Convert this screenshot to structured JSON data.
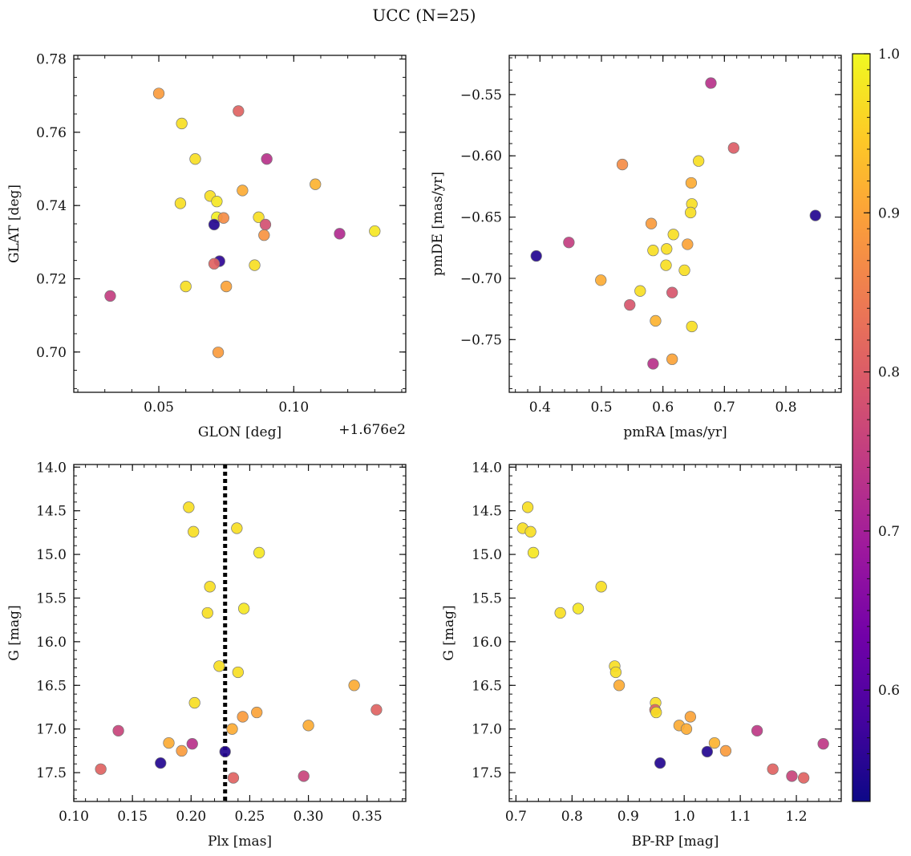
{
  "figure": {
    "title": "UCC (N=25)"
  },
  "colorbar": {
    "range": [
      0.53,
      1.0
    ],
    "ticks": [
      0.6,
      0.7,
      0.8,
      0.9,
      1.0
    ],
    "tick_labels": [
      "0.6",
      "0.7",
      "0.8",
      "0.9",
      "1.0"
    ],
    "colormap": "plasma"
  },
  "colors": {
    "plasma_stops": [
      "#0d0887",
      "#46039f",
      "#7201a8",
      "#9c179e",
      "#bd3786",
      "#d8576b",
      "#ed7953",
      "#fb9f3a",
      "#fdca26",
      "#f0f921"
    ],
    "marker_edge": "#777777",
    "frame": "#111111",
    "reference_line": "#000000"
  },
  "chart_data": [
    {
      "type": "scatter",
      "name": "glon-glat",
      "xlabel": "GLON [deg]",
      "ylabel": "GLAT [deg]",
      "x_offset_label": "+1.676e2",
      "xlim": [
        0.0185,
        0.1415
      ],
      "ylim": [
        0.689,
        0.781
      ],
      "xticks": [
        0.05,
        0.1
      ],
      "xtick_labels": [
        "0.05",
        "0.10"
      ],
      "yticks": [
        0.7,
        0.72,
        0.74,
        0.76,
        0.78
      ],
      "ytick_labels": [
        "0.70",
        "0.72",
        "0.74",
        "0.76",
        "0.78"
      ],
      "x_minor_step": 0.01,
      "y_minor_step": 0.005,
      "points": [
        {
          "x": 0.05,
          "y": 0.7706,
          "c": 0.89
        },
        {
          "x": 0.0795,
          "y": 0.7658,
          "c": 0.81
        },
        {
          "x": 0.0585,
          "y": 0.7624,
          "c": 0.97
        },
        {
          "x": 0.0635,
          "y": 0.7527,
          "c": 0.97
        },
        {
          "x": 0.09,
          "y": 0.7527,
          "c": 0.73
        },
        {
          "x": 0.108,
          "y": 0.7458,
          "c": 0.92
        },
        {
          "x": 0.081,
          "y": 0.7441,
          "c": 0.91
        },
        {
          "x": 0.069,
          "y": 0.7426,
          "c": 0.97
        },
        {
          "x": 0.058,
          "y": 0.7406,
          "c": 0.97
        },
        {
          "x": 0.0715,
          "y": 0.7411,
          "c": 0.98
        },
        {
          "x": 0.0715,
          "y": 0.7368,
          "c": 0.99
        },
        {
          "x": 0.074,
          "y": 0.7366,
          "c": 0.87
        },
        {
          "x": 0.087,
          "y": 0.7368,
          "c": 0.97
        },
        {
          "x": 0.0895,
          "y": 0.7348,
          "c": 0.78
        },
        {
          "x": 0.0705,
          "y": 0.7348,
          "c": 0.55
        },
        {
          "x": 0.089,
          "y": 0.7319,
          "c": 0.88
        },
        {
          "x": 0.117,
          "y": 0.7323,
          "c": 0.72
        },
        {
          "x": 0.13,
          "y": 0.733,
          "c": 0.98
        },
        {
          "x": 0.0725,
          "y": 0.7248,
          "c": 0.56
        },
        {
          "x": 0.0705,
          "y": 0.7241,
          "c": 0.81
        },
        {
          "x": 0.0855,
          "y": 0.7237,
          "c": 0.97
        },
        {
          "x": 0.06,
          "y": 0.7179,
          "c": 0.97
        },
        {
          "x": 0.075,
          "y": 0.7179,
          "c": 0.9
        },
        {
          "x": 0.032,
          "y": 0.7153,
          "c": 0.75
        },
        {
          "x": 0.072,
          "y": 0.6999,
          "c": 0.89
        }
      ]
    },
    {
      "type": "scatter",
      "name": "pmra-pmde",
      "xlabel": "pmRA [mas/yr]",
      "ylabel": "pmDE [mas/yr]",
      "xlim": [
        0.35,
        0.89
      ],
      "ylim": [
        -0.793,
        -0.518
      ],
      "xticks": [
        0.4,
        0.5,
        0.6,
        0.7,
        0.8
      ],
      "xtick_labels": [
        "0.4",
        "0.5",
        "0.6",
        "0.7",
        "0.8"
      ],
      "yticks": [
        -0.55,
        -0.6,
        -0.65,
        -0.7,
        -0.75
      ],
      "ytick_labels": [
        "−0.55",
        "−0.60",
        "−0.65",
        "−0.70",
        "−0.75"
      ],
      "x_minor_step": 0.02,
      "y_minor_step": 0.01,
      "points": [
        {
          "x": 0.678,
          "y": -0.5406,
          "c": 0.73
        },
        {
          "x": 0.715,
          "y": -0.5936,
          "c": 0.8
        },
        {
          "x": 0.534,
          "y": -0.6071,
          "c": 0.87
        },
        {
          "x": 0.658,
          "y": -0.6042,
          "c": 0.97
        },
        {
          "x": 0.646,
          "y": -0.6221,
          "c": 0.91
        },
        {
          "x": 0.647,
          "y": -0.6393,
          "c": 0.97
        },
        {
          "x": 0.645,
          "y": -0.6463,
          "c": 0.97
        },
        {
          "x": 0.848,
          "y": -0.6487,
          "c": 0.55
        },
        {
          "x": 0.581,
          "y": -0.6553,
          "c": 0.89
        },
        {
          "x": 0.617,
          "y": -0.6642,
          "c": 0.97
        },
        {
          "x": 0.447,
          "y": -0.6707,
          "c": 0.75
        },
        {
          "x": 0.64,
          "y": -0.6722,
          "c": 0.9
        },
        {
          "x": 0.606,
          "y": -0.676,
          "c": 0.97
        },
        {
          "x": 0.584,
          "y": -0.6772,
          "c": 0.97
        },
        {
          "x": 0.394,
          "y": -0.6817,
          "c": 0.55
        },
        {
          "x": 0.605,
          "y": -0.6893,
          "c": 0.97
        },
        {
          "x": 0.635,
          "y": -0.6934,
          "c": 0.97
        },
        {
          "x": 0.499,
          "y": -0.7015,
          "c": 0.91
        },
        {
          "x": 0.563,
          "y": -0.7103,
          "c": 0.97
        },
        {
          "x": 0.615,
          "y": -0.7116,
          "c": 0.79
        },
        {
          "x": 0.546,
          "y": -0.7217,
          "c": 0.79
        },
        {
          "x": 0.588,
          "y": -0.7347,
          "c": 0.92
        },
        {
          "x": 0.647,
          "y": -0.7393,
          "c": 0.97
        },
        {
          "x": 0.615,
          "y": -0.766,
          "c": 0.9
        },
        {
          "x": 0.584,
          "y": -0.7697,
          "c": 0.73
        }
      ]
    },
    {
      "type": "scatter",
      "name": "plx-g",
      "xlabel": "Plx [mas]",
      "ylabel": "G [mag]",
      "xlim": [
        0.1,
        0.383
      ],
      "ylim": [
        17.83,
        13.97
      ],
      "xticks": [
        0.1,
        0.15,
        0.2,
        0.25,
        0.3,
        0.35
      ],
      "xtick_labels": [
        "0.10",
        "0.15",
        "0.20",
        "0.25",
        "0.30",
        "0.35"
      ],
      "yticks": [
        14.0,
        14.5,
        15.0,
        15.5,
        16.0,
        16.5,
        17.0,
        17.5
      ],
      "ytick_labels": [
        "14.0",
        "14.5",
        "15.0",
        "15.5",
        "16.0",
        "16.5",
        "17.0",
        "17.5"
      ],
      "x_minor_step": 0.01,
      "y_minor_step": 0.1,
      "vline": 0.229,
      "points": [
        {
          "x": 0.198,
          "y": 14.46,
          "c": 0.97
        },
        {
          "x": 0.202,
          "y": 14.74,
          "c": 0.97
        },
        {
          "x": 0.239,
          "y": 14.7,
          "c": 0.97
        },
        {
          "x": 0.258,
          "y": 14.98,
          "c": 0.98
        },
        {
          "x": 0.216,
          "y": 15.37,
          "c": 0.97
        },
        {
          "x": 0.245,
          "y": 15.62,
          "c": 0.98
        },
        {
          "x": 0.214,
          "y": 15.67,
          "c": 0.97
        },
        {
          "x": 0.224,
          "y": 16.28,
          "c": 0.97
        },
        {
          "x": 0.24,
          "y": 16.35,
          "c": 0.97
        },
        {
          "x": 0.339,
          "y": 16.5,
          "c": 0.91
        },
        {
          "x": 0.203,
          "y": 16.7,
          "c": 0.97
        },
        {
          "x": 0.358,
          "y": 16.78,
          "c": 0.81
        },
        {
          "x": 0.256,
          "y": 16.81,
          "c": 0.9
        },
        {
          "x": 0.244,
          "y": 16.86,
          "c": 0.89
        },
        {
          "x": 0.3,
          "y": 16.96,
          "c": 0.91
        },
        {
          "x": 0.235,
          "y": 17.0,
          "c": 0.91
        },
        {
          "x": 0.138,
          "y": 17.02,
          "c": 0.76
        },
        {
          "x": 0.181,
          "y": 17.16,
          "c": 0.91
        },
        {
          "x": 0.201,
          "y": 17.17,
          "c": 0.73
        },
        {
          "x": 0.192,
          "y": 17.25,
          "c": 0.89
        },
        {
          "x": 0.229,
          "y": 17.26,
          "c": 0.55
        },
        {
          "x": 0.174,
          "y": 17.39,
          "c": 0.55
        },
        {
          "x": 0.123,
          "y": 17.46,
          "c": 0.81
        },
        {
          "x": 0.296,
          "y": 17.54,
          "c": 0.76
        },
        {
          "x": 0.236,
          "y": 17.56,
          "c": 0.81
        }
      ]
    },
    {
      "type": "scatter",
      "name": "bprp-g",
      "xlabel": "BP-RP [mag]",
      "ylabel": "G [mag]",
      "xlim": [
        0.688,
        1.28
      ],
      "ylim": [
        17.83,
        13.97
      ],
      "xticks": [
        0.7,
        0.8,
        0.9,
        1.0,
        1.1,
        1.2
      ],
      "xtick_labels": [
        "0.7",
        "0.8",
        "0.9",
        "1.0",
        "1.1",
        "1.2"
      ],
      "yticks": [
        14.0,
        14.5,
        15.0,
        15.5,
        16.0,
        16.5,
        17.0,
        17.5
      ],
      "ytick_labels": [
        "14.0",
        "14.5",
        "15.0",
        "15.5",
        "16.0",
        "16.5",
        "17.0",
        "17.5"
      ],
      "x_minor_step": 0.02,
      "y_minor_step": 0.1,
      "points": [
        {
          "x": 0.721,
          "y": 14.46,
          "c": 0.97
        },
        {
          "x": 0.712,
          "y": 14.7,
          "c": 0.97
        },
        {
          "x": 0.726,
          "y": 14.74,
          "c": 0.97
        },
        {
          "x": 0.731,
          "y": 14.98,
          "c": 0.98
        },
        {
          "x": 0.852,
          "y": 15.37,
          "c": 0.97
        },
        {
          "x": 0.811,
          "y": 15.62,
          "c": 0.98
        },
        {
          "x": 0.779,
          "y": 15.67,
          "c": 0.97
        },
        {
          "x": 0.876,
          "y": 16.28,
          "c": 0.97
        },
        {
          "x": 0.878,
          "y": 16.35,
          "c": 0.97
        },
        {
          "x": 0.884,
          "y": 16.5,
          "c": 0.91
        },
        {
          "x": 0.949,
          "y": 16.7,
          "c": 0.97
        },
        {
          "x": 0.948,
          "y": 16.78,
          "c": 0.81
        },
        {
          "x": 0.95,
          "y": 16.81,
          "c": 0.97
        },
        {
          "x": 1.011,
          "y": 16.86,
          "c": 0.9
        },
        {
          "x": 0.991,
          "y": 16.96,
          "c": 0.91
        },
        {
          "x": 1.004,
          "y": 17.0,
          "c": 0.91
        },
        {
          "x": 1.13,
          "y": 17.02,
          "c": 0.74
        },
        {
          "x": 1.054,
          "y": 17.16,
          "c": 0.92
        },
        {
          "x": 1.248,
          "y": 17.17,
          "c": 0.74
        },
        {
          "x": 1.074,
          "y": 17.25,
          "c": 0.89
        },
        {
          "x": 1.041,
          "y": 17.26,
          "c": 0.55
        },
        {
          "x": 0.957,
          "y": 17.39,
          "c": 0.55
        },
        {
          "x": 1.158,
          "y": 17.46,
          "c": 0.81
        },
        {
          "x": 1.192,
          "y": 17.54,
          "c": 0.76
        },
        {
          "x": 1.213,
          "y": 17.56,
          "c": 0.81
        }
      ]
    }
  ]
}
